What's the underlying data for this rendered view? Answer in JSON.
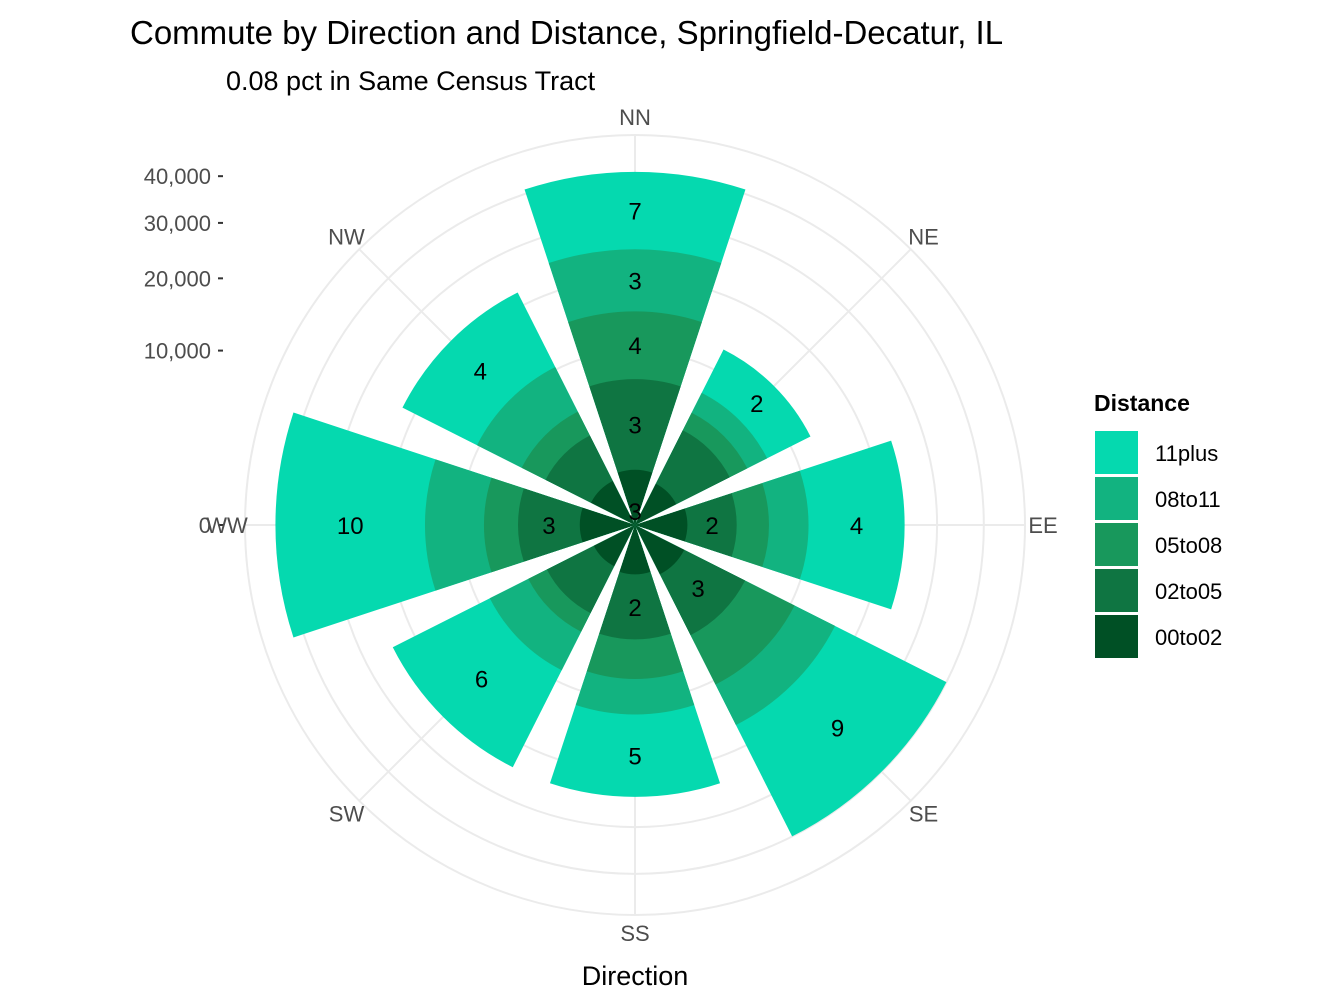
{
  "chart_data": {
    "type": "bar",
    "subtype": "stacked polar (wind rose)",
    "title": "Commute by Direction and Distance, Springfield-Decatur, IL",
    "subtitle": "0.08 pct in Same Census Tract",
    "xlabel": "Direction",
    "ylabel": "",
    "ylim": [
      0,
      50000
    ],
    "y_ticks": [
      0,
      10000,
      20000,
      30000,
      40000
    ],
    "y_tick_labels": [
      "0",
      "10,000",
      "20,000",
      "30,000",
      "40,000"
    ],
    "grid": true,
    "legend_position": "right",
    "legend_title": "Distance",
    "categories": [
      "NN",
      "NE",
      "EE",
      "SE",
      "SS",
      "SW",
      "WW",
      "NW"
    ],
    "series": [
      {
        "name": "00to02",
        "color": "#005025",
        "values": [
          1000,
          700,
          900,
          1000,
          800,
          700,
          1000,
          800
        ],
        "labels": [
          "",
          "",
          "",
          "",
          "",
          "",
          "",
          ""
        ]
      },
      {
        "name": "02to05",
        "color": "#0f7542",
        "values": [
          6000,
          3000,
          2500,
          4000,
          3500,
          2500,
          3500,
          2500
        ],
        "labels": [
          "3",
          "",
          "2",
          "3",
          "2",
          "",
          "3",
          ""
        ]
      },
      {
        "name": "05to08",
        "color": "#18985c",
        "values": [
          8000,
          1500,
          2500,
          5500,
          3500,
          1500,
          3000,
          2000
        ],
        "labels": [
          "4",
          "",
          "",
          "",
          "",
          "",
          "",
          ""
        ]
      },
      {
        "name": "08to11",
        "color": "#12b380",
        "values": [
          10000,
          2000,
          4000,
          6000,
          4000,
          4000,
          7000,
          5000
        ],
        "labels": [
          "3",
          "",
          "",
          "",
          "",
          "",
          "",
          ""
        ]
      },
      {
        "name": "11plus",
        "color": "#05d9af",
        "values": [
          16000,
          5500,
          14000,
          23500,
          12500,
          15500,
          28000,
          12000
        ],
        "labels": [
          "7",
          "2",
          "4",
          "9",
          "5",
          "6",
          "10",
          "4"
        ]
      }
    ],
    "center_label": "3"
  }
}
